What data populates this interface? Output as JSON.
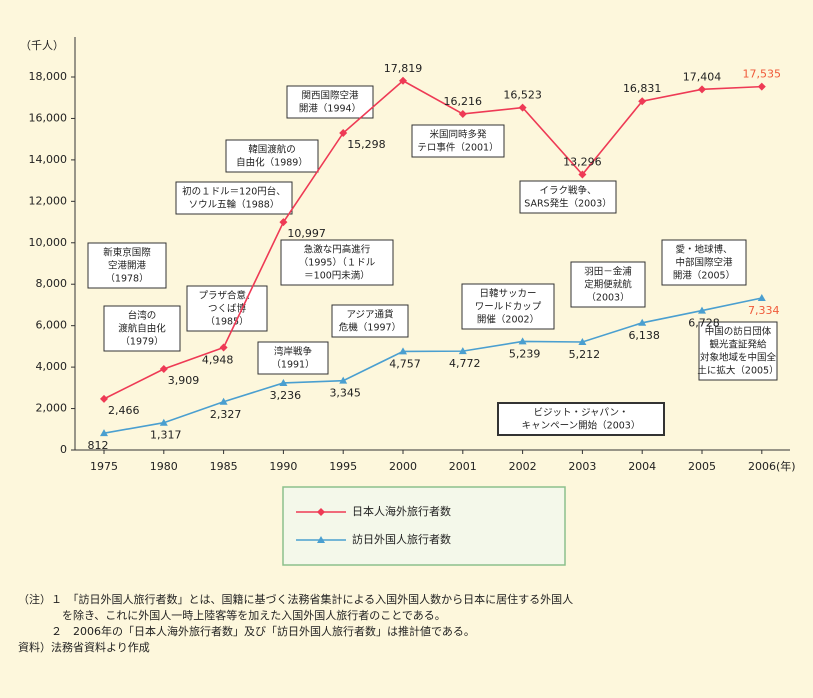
{
  "chart_data": {
    "type": "line",
    "y_unit": "（千人）",
    "categories": [
      "1975",
      "1980",
      "1985",
      "1990",
      "1995",
      "2000",
      "2001",
      "2002",
      "2003",
      "2004",
      "2005",
      "2006(年)"
    ],
    "series": [
      {
        "name": "日本人海外旅行者数",
        "color": "#ee3a55",
        "marker": "diamond",
        "values": [
          2466,
          3909,
          4948,
          10997,
          15298,
          17819,
          16216,
          16523,
          13296,
          16831,
          17404,
          17535
        ],
        "value_labels": [
          "2,466",
          "3,909",
          "4,948",
          "10,997",
          "15,298",
          "17,819",
          "16,216",
          "16,523",
          "13,296",
          "16,831",
          "17,404",
          "17,535"
        ]
      },
      {
        "name": "訪日外国人旅行者数",
        "color": "#4a9fd0",
        "marker": "triangle",
        "values": [
          812,
          1317,
          2327,
          3236,
          3345,
          4757,
          4772,
          5239,
          5212,
          6138,
          6728,
          7334
        ],
        "value_labels": [
          "812",
          "1,317",
          "2,327",
          "3,236",
          "3,345",
          "4,757",
          "4,772",
          "5,239",
          "5,212",
          "6,138",
          "6,728",
          "7,334"
        ]
      }
    ],
    "ylim": [
      0,
      18000
    ],
    "yticks": [
      0,
      {
        "value": 2000,
        "label": "2,000"
      },
      {
        "value": 4000,
        "label": "4,000"
      },
      {
        "value": 6000,
        "label": "6,000"
      },
      {
        "value": 8000,
        "label": "8,000"
      },
      {
        "value": 10000,
        "label": "10,000"
      },
      {
        "value": 12000,
        "label": "12,000"
      },
      {
        "value": 14000,
        "label": "14,000"
      },
      {
        "value": 16000,
        "label": "16,000"
      },
      {
        "value": 18000,
        "label": "18,000"
      }
    ],
    "annotations": [
      [
        "新東京国際",
        "空港開港",
        "（1978）"
      ],
      [
        "台湾の",
        "渡航自由化",
        "（1979）"
      ],
      [
        "プラザ合意、",
        "つくば博",
        "（1985）"
      ],
      [
        "韓国渡航の",
        "自由化（1989）"
      ],
      [
        "初の１ドル＝120円台、",
        "ソウル五輪（1988）"
      ],
      [
        "急激な円高進行",
        "（1995）（１ドル",
        "＝100円未満）"
      ],
      [
        "関西国際空港",
        "開港（1994）"
      ],
      [
        "湾岸戦争",
        "（1991）"
      ],
      [
        "アジア通貨",
        "危機（1997）"
      ],
      [
        "米国同時多発",
        "テロ事件（2001）"
      ],
      [
        "日韓サッカー",
        "ワールドカップ",
        "開催（2002）"
      ],
      [
        "イラク戦争、",
        "SARS発生（2003）"
      ],
      [
        "羽田－金浦",
        "定期便就航",
        "（2003）"
      ],
      [
        "愛・地球博、",
        "中部国際空港",
        "開港（2005）"
      ],
      [
        "中国の訪日団体",
        "観光査証発給",
        "対象地域を中国全",
        "土に拡大（2005）"
      ],
      [
        "ビジット・ジャパン・",
        "キャンペーン開始（2003）"
      ]
    ]
  },
  "notes": [
    "（注）１　「訪日外国人旅行者数」とは、国籍に基づく法務省集計による入国外国人数から日本に居住する外国人",
    "　　　　を除き、これに外国人一時上陸客等を加えた入国外国人旅行者のことである。",
    "　　　２　2006年の「日本人海外旅行者数」及び「訪日外国人旅行者数」は推計値である。",
    "資料）法務省資料より作成"
  ]
}
